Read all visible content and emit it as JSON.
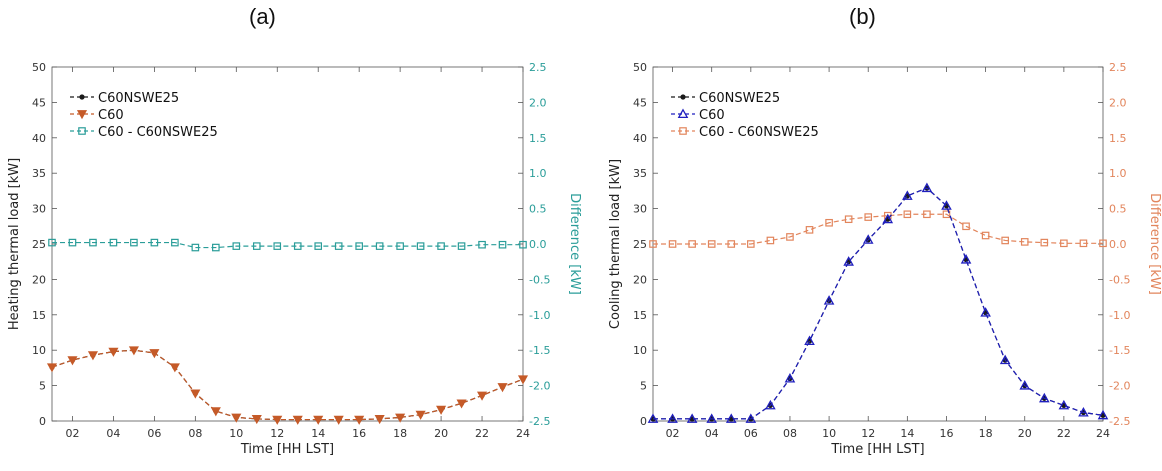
{
  "panels": [
    {
      "label": "(a)"
    },
    {
      "label": "(b)"
    }
  ],
  "chart_data": [
    {
      "type": "line",
      "xlabel": "Time [HH LST]",
      "ylabel": "Heating thermal load [kW]",
      "y2label": "Difference [kW]",
      "xlim": [
        1,
        24
      ],
      "ylim": [
        0,
        50
      ],
      "y2lim": [
        -2.5,
        2.5
      ],
      "x_ticks": [
        "02",
        "04",
        "06",
        "08",
        "10",
        "12",
        "14",
        "16",
        "18",
        "20",
        "22",
        "24"
      ],
      "y_ticks": [
        "0",
        "5",
        "10",
        "15",
        "20",
        "25",
        "30",
        "35",
        "40",
        "45",
        "50"
      ],
      "y2_ticks": [
        "-2.5",
        "-2.0",
        "-1.5",
        "-1.0",
        "-0.5",
        "0.0",
        "0.5",
        "1.0",
        "1.5",
        "2.0",
        "2.5"
      ],
      "x": [
        1,
        2,
        3,
        4,
        5,
        6,
        7,
        8,
        9,
        10,
        11,
        12,
        13,
        14,
        15,
        16,
        17,
        18,
        19,
        20,
        21,
        22,
        23,
        24
      ],
      "legend_position": "top-left",
      "series": [
        {
          "name": "C60NSWE25",
          "axis": "left",
          "color": "#1a1a1a",
          "marker": "dot",
          "values": [
            7.6,
            8.6,
            9.3,
            9.8,
            10.0,
            9.6,
            7.6,
            3.9,
            1.4,
            0.5,
            0.3,
            0.2,
            0.2,
            0.2,
            0.2,
            0.2,
            0.3,
            0.5,
            0.9,
            1.6,
            2.5,
            3.6,
            4.8,
            5.9
          ]
        },
        {
          "name": "C60",
          "axis": "left",
          "color": "#c55a28",
          "marker": "triangle-down",
          "values": [
            7.6,
            8.6,
            9.3,
            9.8,
            10.0,
            9.6,
            7.6,
            3.9,
            1.4,
            0.5,
            0.3,
            0.2,
            0.2,
            0.2,
            0.2,
            0.2,
            0.3,
            0.5,
            0.9,
            1.6,
            2.5,
            3.6,
            4.8,
            5.9
          ]
        },
        {
          "name": "C60 - C60NSWE25",
          "axis": "right",
          "color": "#2a9d99",
          "marker": "square",
          "values": [
            0.02,
            0.02,
            0.02,
            0.02,
            0.02,
            0.02,
            0.02,
            -0.05,
            -0.05,
            -0.03,
            -0.03,
            -0.03,
            -0.03,
            -0.03,
            -0.03,
            -0.03,
            -0.03,
            -0.03,
            -0.03,
            -0.03,
            -0.03,
            -0.01,
            -0.01,
            -0.01
          ]
        }
      ]
    },
    {
      "type": "line",
      "xlabel": "Time [HH LST]",
      "ylabel": "Cooling thermal load [kW]",
      "y2label": "Difference [kW]",
      "xlim": [
        1,
        24
      ],
      "ylim": [
        0,
        50
      ],
      "y2lim": [
        -2.5,
        2.5
      ],
      "x_ticks": [
        "02",
        "04",
        "06",
        "08",
        "10",
        "12",
        "14",
        "16",
        "18",
        "20",
        "22",
        "24"
      ],
      "y_ticks": [
        "0",
        "5",
        "10",
        "15",
        "20",
        "25",
        "30",
        "35",
        "40",
        "45",
        "50"
      ],
      "y2_ticks": [
        "-2.5",
        "-2.0",
        "-1.5",
        "-1.0",
        "-0.5",
        "0.0",
        "0.5",
        "1.0",
        "1.5",
        "2.0",
        "2.5"
      ],
      "x": [
        1,
        2,
        3,
        4,
        5,
        6,
        7,
        8,
        9,
        10,
        11,
        12,
        13,
        14,
        15,
        16,
        17,
        18,
        19,
        20,
        21,
        22,
        23,
        24
      ],
      "legend_position": "top-left",
      "series": [
        {
          "name": "C60NSWE25",
          "axis": "left",
          "color": "#1a1a1a",
          "marker": "dot",
          "values": [
            0.3,
            0.3,
            0.3,
            0.3,
            0.3,
            0.3,
            2.2,
            6.0,
            11.3,
            17.0,
            22.5,
            25.6,
            28.5,
            31.8,
            32.9,
            30.4,
            22.8,
            15.3,
            8.6,
            5.0,
            3.2,
            2.2,
            1.2,
            0.8
          ]
        },
        {
          "name": "C60",
          "axis": "left",
          "color": "#1f1fbf",
          "marker": "triangle-up",
          "values": [
            0.3,
            0.3,
            0.3,
            0.3,
            0.3,
            0.3,
            2.2,
            6.0,
            11.3,
            17.0,
            22.5,
            25.6,
            28.5,
            31.8,
            32.9,
            30.4,
            22.8,
            15.3,
            8.6,
            5.0,
            3.2,
            2.2,
            1.2,
            0.8
          ]
        },
        {
          "name": "C60 - C60NSWE25",
          "axis": "right",
          "color": "#e2855c",
          "marker": "square",
          "values": [
            0.0,
            0.0,
            0.0,
            0.0,
            0.0,
            0.0,
            0.05,
            0.1,
            0.2,
            0.3,
            0.35,
            0.38,
            0.4,
            0.42,
            0.42,
            0.42,
            0.25,
            0.12,
            0.05,
            0.03,
            0.02,
            0.01,
            0.01,
            0.01
          ]
        }
      ]
    }
  ]
}
